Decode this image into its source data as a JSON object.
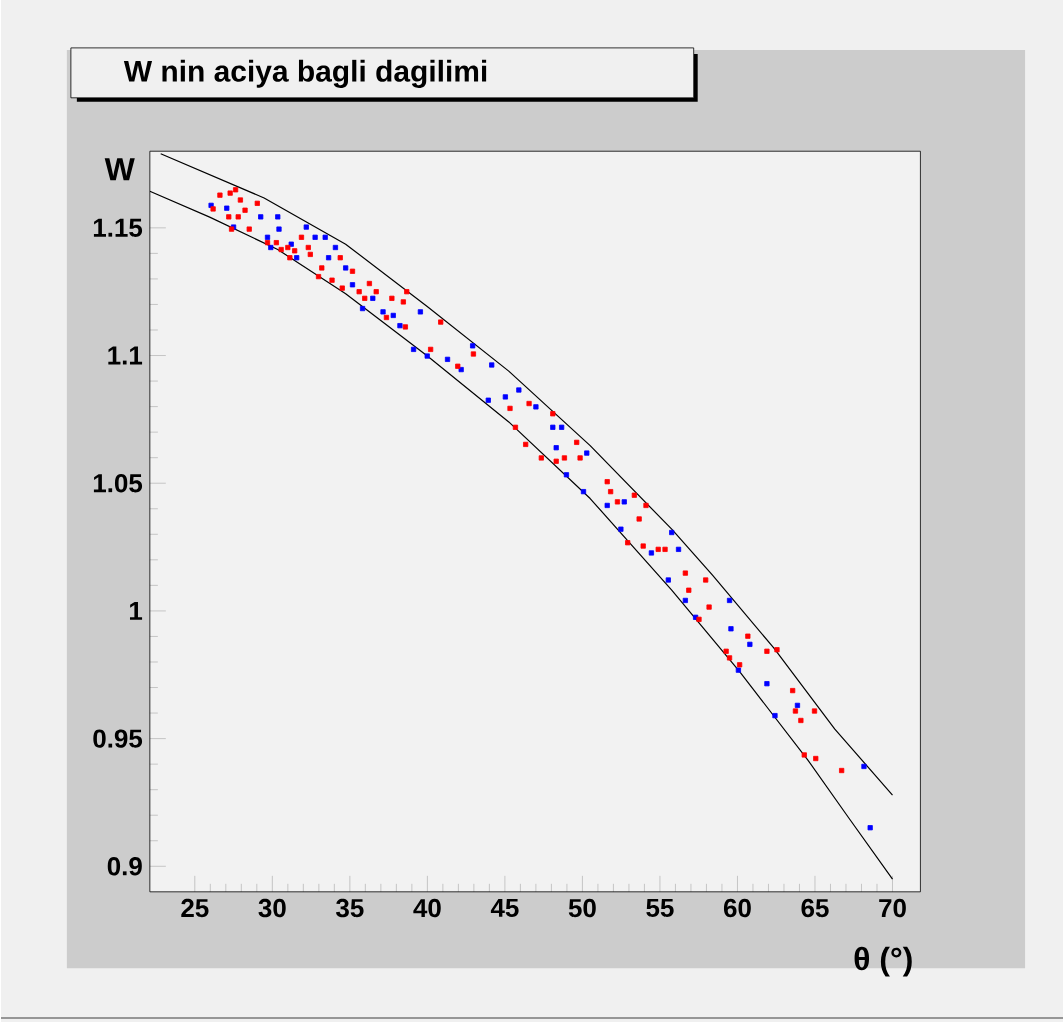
{
  "chart_data": {
    "type": "scatter",
    "title": "W nin aciya bagli dagilimi",
    "xlabel": "θ (°)",
    "ylabel": "W",
    "xlim": [
      22.1,
      71.8
    ],
    "ylim": [
      0.89,
      1.18
    ],
    "xticks": [
      25,
      30,
      35,
      40,
      45,
      50,
      55,
      60,
      65,
      70
    ],
    "yticks": [
      0.9,
      0.95,
      1,
      1.05,
      1.1,
      1.15
    ],
    "marker": "square",
    "series": [
      {
        "type": "line",
        "marker": "none",
        "color": "#000000",
        "x": [
          22.8,
          29.47,
          34.73,
          39.99,
          45.25,
          50.5,
          55.76,
          58.39,
          62.34,
          66.28,
          70.0
        ],
        "values": [
          1.179,
          1.1617,
          1.1436,
          1.1192,
          1.0939,
          1.0647,
          1.032,
          1.014,
          0.9855,
          0.9537,
          0.9279
        ]
      },
      {
        "type": "line",
        "marker": "none",
        "color": "#000000",
        "x": [
          22.1,
          25.96,
          30.35,
          34.73,
          40.0,
          45.25,
          50.5,
          55.76,
          60.14,
          64.53,
          67.16,
          70.0
        ],
        "values": [
          1.1643,
          1.1542,
          1.1415,
          1.1242,
          1.0998,
          1.074,
          1.044,
          1.0081,
          0.9762,
          0.9417,
          0.9191,
          0.895
        ]
      },
      {
        "color": "#0000ff",
        "x": [
          26.05,
          27.06,
          27.5,
          29.25,
          29.69,
          30.35,
          30.43,
          31.22,
          31.57,
          32.19,
          32.76,
          33.41,
          33.63,
          34.07,
          34.73,
          35.17,
          35.82,
          36.48,
          37.14,
          37.8,
          38.23,
          39.55,
          39.11,
          39.99,
          41.3,
          42.18,
          42.92,
          44.15,
          43.93,
          45.03,
          45.9,
          47.0,
          48.09,
          48.66,
          48.31,
          48.97,
          50.07,
          50.28,
          51.6,
          52.48,
          52.7,
          54.45,
          55.54,
          55.76,
          56.2,
          56.64,
          57.3,
          59.49,
          59.58,
          60.06,
          60.8,
          61.9,
          62.42,
          63.87,
          68.16,
          68.56,
          29.9
        ],
        "values": [
          1.1588,
          1.1577,
          1.1503,
          1.1543,
          1.1463,
          1.1543,
          1.1495,
          1.1436,
          1.1383,
          1.1503,
          1.1463,
          1.1463,
          1.1383,
          1.1423,
          1.1343,
          1.1277,
          1.1184,
          1.1224,
          1.1171,
          1.1157,
          1.1117,
          1.1171,
          1.1024,
          1.0998,
          1.0985,
          1.0945,
          1.1038,
          1.0963,
          1.0825,
          1.0838,
          1.0865,
          1.0799,
          1.0719,
          1.0719,
          1.0639,
          1.0533,
          1.0467,
          1.0618,
          1.0413,
          1.032,
          1.0427,
          1.0227,
          1.0121,
          1.0307,
          1.0241,
          1.0041,
          0.9975,
          1.0041,
          0.993,
          0.9768,
          0.9869,
          0.9715,
          0.959,
          0.963,
          0.9391,
          0.9151,
          1.1423
        ]
      },
      {
        "color": "#ff0000",
        "x": [
          26.18,
          26.62,
          27.28,
          27.63,
          27.94,
          27.8,
          27.19,
          28.24,
          28.51,
          27.37,
          29.03,
          29.69,
          30.26,
          30.57,
          31.0,
          31.44,
          31.13,
          31.88,
          32.32,
          32.45,
          32.98,
          33.19,
          33.85,
          34.38,
          34.51,
          35.17,
          35.6,
          35.96,
          36.26,
          36.7,
          37.36,
          37.71,
          38.45,
          38.58,
          38.67,
          40.86,
          40.21,
          41.96,
          42.97,
          45.33,
          45.68,
          46.56,
          46.34,
          47.35,
          48.09,
          48.31,
          48.84,
          49.63,
          49.85,
          51.6,
          51.82,
          52.26,
          52.92,
          53.35,
          53.66,
          54.1,
          53.92,
          54.89,
          55.33,
          56.64,
          56.86,
          57.52,
          57.95,
          58.17,
          59.27,
          59.49,
          60.14,
          60.67,
          61.9,
          62.55,
          63.56,
          63.74,
          64.09,
          64.31,
          64.97,
          65.05,
          66.72
        ],
        "values": [
          1.1574,
          1.1628,
          1.1636,
          1.1649,
          1.1609,
          1.1543,
          1.1543,
          1.1569,
          1.1495,
          1.1495,
          1.1596,
          1.1442,
          1.1442,
          1.1415,
          1.1423,
          1.141,
          1.1383,
          1.1463,
          1.1423,
          1.1396,
          1.1309,
          1.1343,
          1.1295,
          1.1383,
          1.1264,
          1.133,
          1.125,
          1.1224,
          1.1282,
          1.125,
          1.1149,
          1.1224,
          1.121,
          1.1112,
          1.125,
          1.1131,
          1.1024,
          1.0958,
          1.1006,
          1.0793,
          1.0719,
          1.0812,
          1.0652,
          1.0599,
          1.0772,
          1.0586,
          1.0599,
          1.066,
          1.0599,
          1.0506,
          1.0467,
          1.0427,
          1.0267,
          1.0453,
          1.036,
          1.0413,
          1.0254,
          1.0241,
          1.0241,
          1.0148,
          1.0081,
          0.9967,
          1.0121,
          1.0015,
          0.9842,
          0.9816,
          0.9789,
          0.9901,
          0.9842,
          0.9848,
          0.9688,
          0.9608,
          0.9571,
          0.9436,
          0.9608,
          0.9422,
          0.9375
        ]
      }
    ]
  }
}
